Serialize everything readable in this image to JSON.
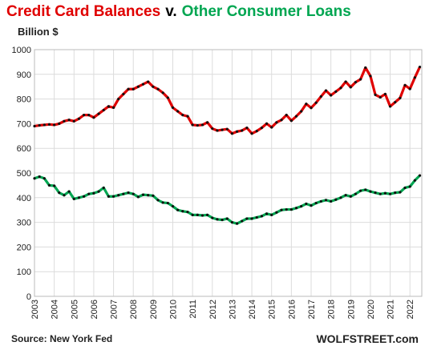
{
  "chart_data": {
    "type": "line",
    "title": [
      {
        "text": "Credit Card Balances",
        "color": "#e00000"
      },
      {
        "text": "v.",
        "color": "#000000"
      },
      {
        "text": "Other Consumer Loans",
        "color": "#00a651"
      }
    ],
    "y_label": "Billion $",
    "source": "Source: New York Fed",
    "brand": "WOLFSTREET.com",
    "grid": true,
    "xlim": [
      2003,
      2022.6
    ],
    "ylim": [
      0,
      1000
    ],
    "yticks": [
      0,
      100,
      200,
      300,
      400,
      500,
      600,
      700,
      800,
      900,
      1000
    ],
    "xticks": [
      2003,
      2004,
      2005,
      2006,
      2007,
      2008,
      2009,
      2010,
      2011,
      2012,
      2013,
      2014,
      2015,
      2016,
      2017,
      2018,
      2019,
      2020,
      2021,
      2022
    ],
    "x": [
      2003,
      2003.25,
      2003.5,
      2003.75,
      2004,
      2004.25,
      2004.5,
      2004.75,
      2005,
      2005.25,
      2005.5,
      2005.75,
      2006,
      2006.25,
      2006.5,
      2006.75,
      2007,
      2007.25,
      2007.5,
      2007.75,
      2008,
      2008.25,
      2008.5,
      2008.75,
      2009,
      2009.25,
      2009.5,
      2009.75,
      2010,
      2010.25,
      2010.5,
      2010.75,
      2011,
      2011.25,
      2011.5,
      2011.75,
      2012,
      2012.25,
      2012.5,
      2012.75,
      2013,
      2013.25,
      2013.5,
      2013.75,
      2014,
      2014.25,
      2014.5,
      2014.75,
      2015,
      2015.25,
      2015.5,
      2015.75,
      2016,
      2016.25,
      2016.5,
      2016.75,
      2017,
      2017.25,
      2017.5,
      2017.75,
      2018,
      2018.25,
      2018.5,
      2018.75,
      2019,
      2019.25,
      2019.5,
      2019.75,
      2020,
      2020.25,
      2020.5,
      2020.75,
      2021,
      2021.25,
      2021.5,
      2021.75,
      2022,
      2022.25,
      2022.5
    ],
    "series": [
      {
        "color": "#e00000",
        "values": [
          690,
          693,
          695,
          697,
          695,
          700,
          710,
          715,
          710,
          720,
          735,
          735,
          725,
          740,
          755,
          770,
          765,
          800,
          820,
          840,
          840,
          850,
          860,
          870,
          850,
          840,
          825,
          805,
          765,
          750,
          735,
          730,
          695,
          693,
          695,
          705,
          680,
          672,
          675,
          678,
          660,
          668,
          672,
          683,
          660,
          670,
          683,
          700,
          685,
          705,
          715,
          735,
          712,
          730,
          750,
          780,
          764,
          785,
          810,
          834,
          815,
          830,
          845,
          870,
          848,
          868,
          880,
          927,
          893,
          817,
          807,
          820,
          770,
          787,
          804,
          856,
          841,
          887,
          930
        ]
      },
      {
        "color": "#00a651",
        "values": [
          478,
          485,
          478,
          450,
          448,
          420,
          410,
          425,
          395,
          400,
          405,
          415,
          418,
          425,
          440,
          405,
          405,
          410,
          415,
          420,
          415,
          403,
          412,
          410,
          408,
          390,
          380,
          378,
          365,
          350,
          345,
          342,
          330,
          330,
          328,
          330,
          318,
          312,
          310,
          315,
          300,
          295,
          305,
          315,
          315,
          320,
          325,
          335,
          330,
          340,
          350,
          352,
          352,
          358,
          365,
          375,
          368,
          378,
          385,
          390,
          385,
          392,
          400,
          410,
          405,
          415,
          428,
          432,
          425,
          420,
          415,
          418,
          415,
          420,
          422,
          440,
          445,
          470,
          490
        ]
      }
    ]
  }
}
